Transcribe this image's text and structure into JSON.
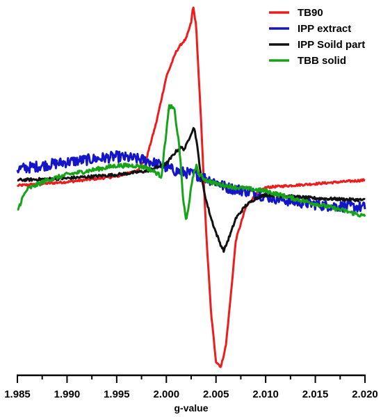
{
  "chart_data": {
    "type": "line",
    "xlabel": "g-value",
    "ylabel": "",
    "xlim": [
      1.985,
      2.02
    ],
    "ylim": [
      -1.0,
      1.0
    ],
    "xticks": [
      "1.985",
      "1.990",
      "1.995",
      "2.000",
      "2.005",
      "2.010",
      "2.015",
      "2.020"
    ],
    "grid": false,
    "legend_position": "top-right",
    "series": [
      {
        "name": "TB90",
        "color": "#ee1c1c",
        "noise": 0.006,
        "points": [
          [
            1.985,
            0.0
          ],
          [
            1.99,
            0.02
          ],
          [
            1.995,
            0.05
          ],
          [
            1.997,
            0.08
          ],
          [
            1.998,
            0.15
          ],
          [
            1.999,
            0.35
          ],
          [
            2.0,
            0.6
          ],
          [
            2.001,
            0.74
          ],
          [
            2.0015,
            0.78
          ],
          [
            2.002,
            0.81
          ],
          [
            2.0025,
            0.9
          ],
          [
            2.0027,
            0.99
          ],
          [
            2.003,
            0.88
          ],
          [
            2.0035,
            0.35
          ],
          [
            2.004,
            -0.25
          ],
          [
            2.0045,
            -0.7
          ],
          [
            2.005,
            -0.97
          ],
          [
            2.0055,
            -1.0
          ],
          [
            2.006,
            -0.88
          ],
          [
            2.0065,
            -0.6
          ],
          [
            2.007,
            -0.3
          ],
          [
            2.008,
            -0.12
          ],
          [
            2.009,
            -0.05
          ],
          [
            2.01,
            -0.01
          ],
          [
            2.015,
            0.01
          ],
          [
            2.02,
            0.03
          ]
        ]
      },
      {
        "name": "IPP extract",
        "color": "#1414c8",
        "noise": 0.03,
        "points": [
          [
            1.985,
            0.09
          ],
          [
            1.99,
            0.13
          ],
          [
            1.995,
            0.16
          ],
          [
            1.998,
            0.14
          ],
          [
            1.999,
            0.12
          ],
          [
            2.0,
            0.1
          ],
          [
            2.001,
            0.08
          ],
          [
            2.003,
            0.06
          ],
          [
            2.005,
            0.02
          ],
          [
            2.006,
            -0.01
          ],
          [
            2.008,
            -0.03
          ],
          [
            2.01,
            -0.06
          ],
          [
            2.013,
            -0.09
          ],
          [
            2.016,
            -0.11
          ],
          [
            2.02,
            -0.12
          ]
        ]
      },
      {
        "name": "IPP Soild part",
        "color": "#111111",
        "noise": 0.008,
        "points": [
          [
            1.985,
            0.03
          ],
          [
            1.99,
            0.04
          ],
          [
            1.995,
            0.06
          ],
          [
            1.998,
            0.08
          ],
          [
            2.0,
            0.12
          ],
          [
            2.001,
            0.19
          ],
          [
            2.0015,
            0.21
          ],
          [
            2.0018,
            0.2
          ],
          [
            2.002,
            0.22
          ],
          [
            2.0025,
            0.29
          ],
          [
            2.0028,
            0.32
          ],
          [
            2.003,
            0.26
          ],
          [
            2.0035,
            0.05
          ],
          [
            2.004,
            -0.08
          ],
          [
            2.0045,
            -0.18
          ],
          [
            2.005,
            -0.26
          ],
          [
            2.0055,
            -0.33
          ],
          [
            2.0058,
            -0.36
          ],
          [
            2.006,
            -0.33
          ],
          [
            2.0065,
            -0.26
          ],
          [
            2.007,
            -0.18
          ],
          [
            2.008,
            -0.11
          ],
          [
            2.009,
            -0.07
          ],
          [
            2.01,
            -0.05
          ],
          [
            2.015,
            -0.07
          ],
          [
            2.02,
            -0.08
          ]
        ]
      },
      {
        "name": "TBB solid",
        "color": "#17a317",
        "noise": 0.012,
        "points": [
          [
            1.985,
            -0.14
          ],
          [
            1.9855,
            -0.07
          ],
          [
            1.986,
            -0.02
          ],
          [
            1.988,
            0.03
          ],
          [
            1.99,
            0.06
          ],
          [
            1.992,
            0.08
          ],
          [
            1.995,
            0.11
          ],
          [
            1.997,
            0.11
          ],
          [
            1.998,
            0.1
          ],
          [
            1.999,
            0.07
          ],
          [
            1.9995,
            0.05
          ],
          [
            2.0,
            0.3
          ],
          [
            2.0003,
            0.44
          ],
          [
            2.0008,
            0.42
          ],
          [
            2.0013,
            0.22
          ],
          [
            2.0017,
            -0.08
          ],
          [
            2.002,
            -0.2
          ],
          [
            2.0024,
            -0.05
          ],
          [
            2.0028,
            0.08
          ],
          [
            2.003,
            0.11
          ],
          [
            2.0033,
            0.06
          ],
          [
            2.004,
            0.03
          ],
          [
            2.005,
            0.01
          ],
          [
            2.007,
            -0.01
          ],
          [
            2.01,
            -0.03
          ],
          [
            2.012,
            -0.06
          ],
          [
            2.015,
            -0.1
          ],
          [
            2.018,
            -0.14
          ],
          [
            2.02,
            -0.17
          ]
        ]
      }
    ]
  }
}
